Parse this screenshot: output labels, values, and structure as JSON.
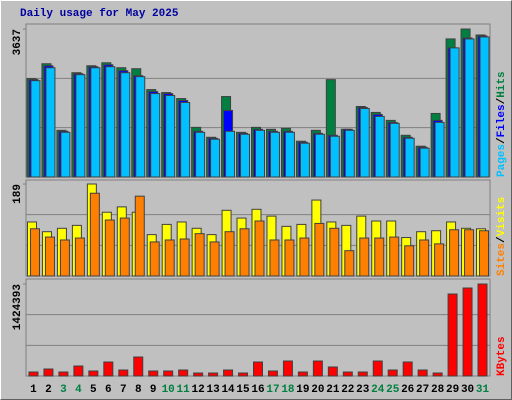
{
  "chart_data": [
    {
      "type": "bar",
      "title": "Daily usage for May 2025",
      "ylim": [
        0,
        3637
      ],
      "yticks": [
        3637
      ],
      "series": [
        {
          "name": "Pages",
          "color": "#00c0ff",
          "values": [
            2368,
            2685,
            1098,
            2515,
            2685,
            2710,
            2563,
            2466,
            2050,
            2002,
            1831,
            1098,
            928,
            1123,
            1050,
            1147,
            1098,
            1098,
            830,
            1050,
            1001,
            1147,
            1684,
            1489,
            1318,
            952,
            708,
            1342,
            3173,
            3393,
            3441
          ]
        },
        {
          "name": "Files",
          "color": "#0000ff",
          "values": [
            2394,
            2734,
            1123,
            2539,
            2710,
            2758,
            2612,
            2490,
            2099,
            2050,
            1879,
            1123,
            952,
            1636,
            1074,
            1172,
            1123,
            1123,
            854,
            1074,
            1025,
            1172,
            1709,
            1538,
            1342,
            976,
            732,
            1391,
            3173,
            3417,
            3466
          ]
        },
        {
          "name": "Hits",
          "color": "#008040",
          "values": [
            2418,
            2783,
            1147,
            2563,
            2734,
            2807,
            2685,
            2661,
            2148,
            2075,
            1928,
            1220,
            976,
            1977,
            1098,
            1220,
            1172,
            1196,
            879,
            1147,
            2392,
            1172,
            1733,
            1587,
            1391,
            1025,
            757,
            1562,
            3393,
            3637,
            3490
          ]
        }
      ]
    },
    {
      "type": "bar",
      "ylim": [
        0,
        189
      ],
      "yticks": [
        189
      ],
      "series": [
        {
          "name": "Sites",
          "color": "#ff8000",
          "values": [
            97,
            80,
            74,
            78,
            170,
            115,
            119,
            164,
            70,
            74,
            76,
            87,
            70,
            91,
            97,
            113,
            74,
            74,
            78,
            108,
            98,
            52,
            78,
            78,
            80,
            62,
            74,
            66,
            95,
            95,
            93
          ]
        },
        {
          "name": "Visits",
          "color": "#ffff00",
          "values": [
            111,
            91,
            98,
            104,
            189,
            131,
            142,
            131,
            85,
            106,
            111,
            98,
            85,
            135,
            119,
            137,
            123,
            102,
            106,
            156,
            111,
            104,
            123,
            113,
            113,
            79,
            91,
            93,
            111,
            98,
            97
          ]
        }
      ]
    },
    {
      "type": "bar",
      "categories": [
        "1",
        "2",
        "3",
        "4",
        "5",
        "6",
        "7",
        "8",
        "9",
        "10",
        "11",
        "12",
        "13",
        "14",
        "15",
        "16",
        "17",
        "18",
        "19",
        "20",
        "21",
        "22",
        "23",
        "24",
        "25",
        "26",
        "27",
        "28",
        "29",
        "30",
        "31"
      ],
      "category_colors": [
        "#000000",
        "#000000",
        "#008040",
        "#008040",
        "#000000",
        "#000000",
        "#000000",
        "#000000",
        "#000000",
        "#008040",
        "#008040",
        "#000000",
        "#000000",
        "#000000",
        "#000000",
        "#000000",
        "#008040",
        "#008040",
        "#000000",
        "#000000",
        "#000000",
        "#000000",
        "#000000",
        "#008040",
        "#008040",
        "#000000",
        "#000000",
        "#000000",
        "#000000",
        "#000000",
        "#008040"
      ],
      "ylim": [
        0,
        1424393
      ],
      "yticks": [
        1424393
      ],
      "series": [
        {
          "name": "KBytes",
          "color": "#ff0000",
          "values": [
            61932,
            108381,
            61932,
            154830,
            77415,
            216762,
            92898,
            294177,
            77415,
            77415,
            92898,
            46449,
            46449,
            92898,
            46449,
            216762,
            77415,
            232245,
            61932,
            232245,
            139347,
            61932,
            61932,
            232245,
            92898,
            216762,
            92898,
            46449,
            1269600,
            1362500,
            1424393
          ]
        }
      ]
    }
  ]
}
